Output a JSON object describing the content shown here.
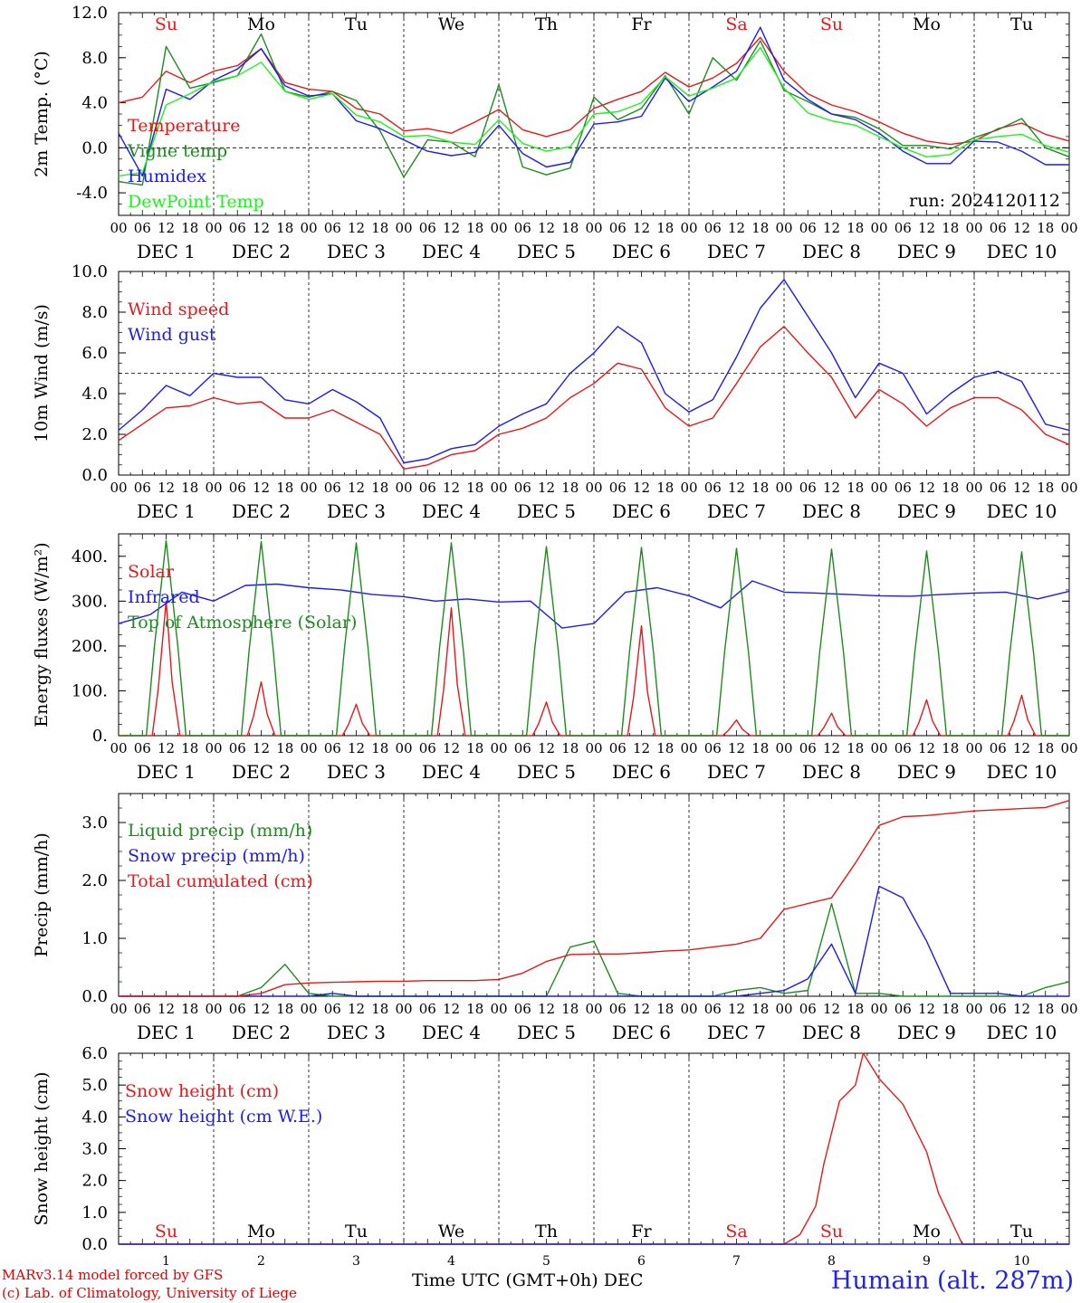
{
  "station": "Humain (alt. 287m)",
  "credits": [
    "MARv3.14 model forced by GFS",
    "(c) Lab. of Climatology, University of Liege"
  ],
  "x_title": "Time UTC (GMT+0h)",
  "x_title_unit": "DEC",
  "colors": {
    "red": "#e01a1a",
    "dkgreen": "#1f8a1f",
    "blue": "#1c1ce6",
    "ltgreen": "#22ee22",
    "weekend": "#e01a1a",
    "weekday": "#000000"
  },
  "chart_data": [
    {
      "type": "line",
      "ylabel": "2m Temp. (°C)",
      "ylim": [
        -6,
        12
      ],
      "yticks": [
        "-4.0",
        "0.0",
        "4.0",
        "8.0",
        "12.0"
      ],
      "ref_line": 0,
      "run_label": "run: 2024120112",
      "weekdays": [
        "Su",
        "Mo",
        "Tu",
        "We",
        "Th",
        "Fr",
        "Sa",
        "Su",
        "Mo",
        "Tu"
      ],
      "weekend": [
        true,
        false,
        false,
        false,
        false,
        false,
        true,
        true,
        false,
        false
      ],
      "x_hours": [
        0,
        6,
        12,
        18,
        24,
        30,
        36,
        42,
        48,
        54,
        60,
        66,
        72,
        78,
        84,
        90,
        96,
        102,
        108,
        114,
        120,
        126,
        132,
        138,
        144,
        150,
        156,
        162,
        168,
        174,
        180,
        186,
        192,
        198,
        204,
        210,
        216,
        222,
        228,
        234,
        240
      ],
      "series": [
        {
          "name": "Temperature",
          "color": "red",
          "values": [
            4.0,
            4.5,
            6.8,
            5.8,
            6.8,
            7.3,
            8.8,
            5.8,
            5.2,
            5.0,
            3.5,
            3.0,
            1.5,
            1.7,
            1.3,
            2.3,
            3.4,
            1.6,
            1.0,
            1.6,
            3.5,
            4.3,
            5.0,
            6.7,
            5.4,
            6.2,
            7.5,
            9.8,
            6.8,
            4.8,
            3.8,
            3.2,
            2.3,
            1.3,
            0.6,
            0.3,
            0.6,
            1.7,
            2.2,
            1.2,
            0.6
          ]
        },
        {
          "name": "Vigne temp",
          "color": "dkgreen",
          "values": [
            -3.0,
            -3.3,
            9.0,
            5.3,
            5.8,
            6.4,
            10.1,
            5.0,
            4.5,
            5.0,
            4.2,
            1.5,
            -2.6,
            0.7,
            0.5,
            -0.8,
            5.6,
            -1.7,
            -2.4,
            -1.8,
            4.5,
            2.5,
            3.5,
            6.4,
            3.0,
            8.0,
            6.0,
            9.5,
            5.1,
            4.1,
            3.0,
            2.7,
            1.7,
            0.2,
            0.2,
            -0.1,
            0.9,
            1.6,
            2.6,
            0.0,
            -0.8
          ]
        },
        {
          "name": "Humidex",
          "color": "blue",
          "values": [
            1.3,
            -2.5,
            5.2,
            4.3,
            6.0,
            7.0,
            8.8,
            5.5,
            4.6,
            4.8,
            2.4,
            1.7,
            0.7,
            -0.3,
            -0.7,
            -0.4,
            2.0,
            -0.5,
            -1.7,
            -1.3,
            2.1,
            2.3,
            2.8,
            6.2,
            4.1,
            5.4,
            6.8,
            10.7,
            6.0,
            4.3,
            3.0,
            2.5,
            1.3,
            -0.3,
            -1.4,
            -1.4,
            0.6,
            0.5,
            -0.3,
            -1.5,
            -1.5
          ]
        },
        {
          "name": "DewPoint Temp",
          "color": "ltgreen",
          "values": [
            -2.5,
            -2.2,
            3.8,
            4.8,
            5.9,
            6.4,
            7.6,
            5.0,
            4.3,
            4.8,
            2.9,
            2.3,
            1.0,
            1.1,
            0.5,
            0.3,
            2.5,
            0.4,
            -0.3,
            0.1,
            3.0,
            3.2,
            4.0,
            6.3,
            4.6,
            5.3,
            6.2,
            8.9,
            5.3,
            3.1,
            2.4,
            2.0,
            1.0,
            0.0,
            -0.8,
            -0.6,
            0.7,
            1.0,
            1.2,
            0.2,
            -0.4
          ]
        }
      ],
      "legend": "left"
    },
    {
      "type": "line",
      "ylabel": "10m Wind (m/s)",
      "ylim": [
        0,
        10
      ],
      "yticks": [
        "0.0",
        "2.0",
        "4.0",
        "6.0",
        "8.0",
        "10.0"
      ],
      "ref_line": 5,
      "x_hours": [
        0,
        6,
        12,
        18,
        24,
        30,
        36,
        42,
        48,
        54,
        60,
        66,
        72,
        78,
        84,
        90,
        96,
        102,
        108,
        114,
        120,
        126,
        132,
        138,
        144,
        150,
        156,
        162,
        168,
        174,
        180,
        186,
        192,
        198,
        204,
        210,
        216,
        222,
        228,
        234,
        240
      ],
      "series": [
        {
          "name": "Wind speed",
          "color": "red",
          "values": [
            1.7,
            2.5,
            3.3,
            3.4,
            3.8,
            3.5,
            3.6,
            2.8,
            2.8,
            3.2,
            2.6,
            2.0,
            0.3,
            0.5,
            1.0,
            1.2,
            2.0,
            2.3,
            2.8,
            3.8,
            4.5,
            5.5,
            5.2,
            3.3,
            2.4,
            2.8,
            4.5,
            6.3,
            7.3,
            6.0,
            4.8,
            2.8,
            4.2,
            3.5,
            2.4,
            3.3,
            3.8,
            3.8,
            3.2,
            2.0,
            1.5
          ]
        },
        {
          "name": "Wind gust",
          "color": "blue",
          "values": [
            2.2,
            3.2,
            4.4,
            3.9,
            5.0,
            4.8,
            4.8,
            3.7,
            3.5,
            4.2,
            3.6,
            2.8,
            0.6,
            0.8,
            1.3,
            1.5,
            2.4,
            3.0,
            3.5,
            5.0,
            6.0,
            7.3,
            6.5,
            4.0,
            3.1,
            3.7,
            5.8,
            8.2,
            9.6,
            7.8,
            6.0,
            3.8,
            5.5,
            5.0,
            3.0,
            4.0,
            4.8,
            5.1,
            4.6,
            2.5,
            2.2
          ]
        }
      ],
      "legend": "left"
    },
    {
      "type": "line",
      "ylabel": "Energy fluxes (W/m²)",
      "ylim": [
        0,
        450
      ],
      "yticks": [
        "0.",
        "100.",
        "200.",
        "300.",
        "400."
      ],
      "series": [
        {
          "name": "Solar",
          "color": "red",
          "daily_peak": [
            300,
            120,
            70,
            285,
            75,
            245,
            35,
            50,
            80,
            90
          ]
        },
        {
          "name": "Infrared",
          "color": "blue",
          "values": [
            250,
            270,
            320,
            300,
            335,
            338,
            330,
            325,
            315,
            310,
            300,
            305,
            298,
            300,
            240,
            250,
            320,
            330,
            312,
            285,
            345,
            320,
            318,
            315,
            312,
            311,
            315,
            318,
            320,
            305,
            322
          ]
        },
        {
          "name": "Top of Atmosphere (Solar)",
          "color": "dkgreen",
          "daily_peak": [
            435,
            433,
            430,
            430,
            422,
            420,
            418,
            416,
            412,
            410
          ]
        }
      ],
      "legend": "left"
    },
    {
      "type": "line",
      "ylabel": "Precip (mm/h)",
      "ylim": [
        0,
        3.5
      ],
      "yticks": [
        "0.0",
        "1.0",
        "2.0",
        "3.0"
      ],
      "series": [
        {
          "name": "Liquid precip (mm/h)",
          "color": "dkgreen",
          "values": [
            0,
            0,
            0,
            0,
            0,
            0,
            0.15,
            0.55,
            0.05,
            0,
            0,
            0,
            0,
            0,
            0,
            0,
            0,
            0,
            0,
            0.85,
            0.95,
            0.05,
            0,
            0,
            0,
            0,
            0.1,
            0.15,
            0.05,
            0.1,
            1.6,
            0.05,
            0.05,
            0,
            0,
            0,
            0,
            0,
            0,
            0.15,
            0.25
          ]
        },
        {
          "name": "Snow precip (mm/h)",
          "color": "blue",
          "values": [
            0,
            0,
            0,
            0,
            0,
            0,
            0,
            0,
            0,
            0.05,
            0,
            0,
            0,
            0,
            0,
            0,
            0,
            0,
            0,
            0,
            0,
            0,
            0,
            0,
            0,
            0,
            0,
            0.05,
            0.1,
            0.3,
            0.9,
            0.05,
            1.9,
            1.7,
            0.95,
            0.05,
            0.05,
            0.05,
            0,
            0,
            0
          ]
        },
        {
          "name": "Total cumulated (cm)",
          "color": "red",
          "values": [
            0,
            0,
            0,
            0,
            0,
            0,
            0.05,
            0.2,
            0.23,
            0.24,
            0.25,
            0.26,
            0.26,
            0.27,
            0.27,
            0.27,
            0.29,
            0.4,
            0.6,
            0.72,
            0.73,
            0.73,
            0.75,
            0.78,
            0.8,
            0.85,
            0.9,
            1.0,
            1.5,
            1.6,
            1.7,
            2.3,
            2.95,
            3.1,
            3.12,
            3.16,
            3.2,
            3.22,
            3.24,
            3.26,
            3.38
          ]
        }
      ],
      "legend": "left"
    },
    {
      "type": "line",
      "ylabel": "Snow height (cm)",
      "ylim": [
        0,
        6
      ],
      "yticks": [
        "0.0",
        "1.0",
        "2.0",
        "3.0",
        "4.0",
        "5.0",
        "6.0"
      ],
      "day_numbers": [
        "1",
        "2",
        "3",
        "4",
        "5",
        "6",
        "7",
        "8",
        "9",
        "10"
      ],
      "series": [
        {
          "name": "Snow height (cm)",
          "color": "red",
          "points": [
            [
              0,
              0
            ],
            [
              168,
              0
            ],
            [
              172,
              0.3
            ],
            [
              176,
              1.2
            ],
            [
              178,
              2.5
            ],
            [
              180,
              3.5
            ],
            [
              182,
              4.5
            ],
            [
              186,
              5.0
            ],
            [
              188,
              6.0
            ],
            [
              192,
              5.2
            ],
            [
              198,
              4.4
            ],
            [
              204,
              2.9
            ],
            [
              207,
              1.6
            ],
            [
              210,
              0.8
            ],
            [
              213,
              0
            ],
            [
              240,
              0
            ]
          ]
        },
        {
          "name": "Snow height (cm W.E.)",
          "color": "blue",
          "points": [
            [
              0,
              0
            ],
            [
              240,
              0
            ]
          ]
        }
      ],
      "legend": "left"
    }
  ],
  "x_axis": {
    "hour_labels": [
      "00",
      "06",
      "12",
      "18"
    ],
    "dates": [
      "DEC  1",
      "DEC  2",
      "DEC  3",
      "DEC  4",
      "DEC  5",
      "DEC  6",
      "DEC  7",
      "DEC  8",
      "DEC  9",
      "DEC 10"
    ],
    "last_label": "00"
  }
}
